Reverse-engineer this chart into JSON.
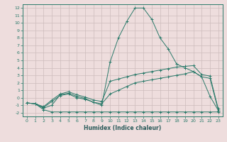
{
  "title": "",
  "xlabel": "Humidex (Indice chaleur)",
  "ylabel": "",
  "background_color": "#eedddd",
  "grid_color": "#ccbbbb",
  "line_color": "#2a7a6a",
  "xlim": [
    -0.5,
    23.5
  ],
  "ylim": [
    -2.5,
    12.5
  ],
  "xticks": [
    0,
    1,
    2,
    3,
    4,
    5,
    6,
    7,
    8,
    9,
    10,
    11,
    12,
    13,
    14,
    15,
    16,
    17,
    18,
    19,
    20,
    21,
    22,
    23
  ],
  "yticks": [
    -2,
    -1,
    0,
    1,
    2,
    3,
    4,
    5,
    6,
    7,
    8,
    9,
    10,
    11,
    12
  ],
  "series": [
    {
      "x": [
        0,
        1,
        2,
        3,
        4,
        5,
        6,
        7,
        8,
        9,
        10,
        11,
        12,
        13,
        14,
        15,
        16,
        17,
        18,
        19,
        20,
        21,
        22,
        23
      ],
      "y": [
        -0.7,
        -0.8,
        -1.6,
        -1.9,
        -1.9,
        -1.9,
        -1.9,
        -1.9,
        -1.9,
        -1.9,
        -1.9,
        -1.9,
        -1.9,
        -1.9,
        -1.9,
        -1.9,
        -1.9,
        -1.9,
        -1.9,
        -1.9,
        -1.9,
        -1.9,
        -1.9,
        -1.9
      ]
    },
    {
      "x": [
        0,
        1,
        2,
        3,
        4,
        5,
        6,
        7,
        8,
        9,
        10,
        11,
        12,
        13,
        14,
        15,
        16,
        17,
        18,
        19,
        20,
        21,
        22,
        23
      ],
      "y": [
        -0.7,
        -0.8,
        -1.3,
        -0.5,
        0.3,
        0.5,
        0.0,
        -0.2,
        -0.6,
        -0.8,
        0.5,
        1.0,
        1.5,
        2.0,
        2.2,
        2.4,
        2.6,
        2.8,
        3.0,
        3.2,
        3.5,
        2.8,
        2.6,
        -1.7
      ]
    },
    {
      "x": [
        0,
        1,
        2,
        3,
        4,
        5,
        6,
        7,
        8,
        9,
        10,
        11,
        12,
        13,
        14,
        15,
        16,
        17,
        18,
        19,
        20,
        21,
        22,
        23
      ],
      "y": [
        -0.7,
        -0.8,
        -1.4,
        -1.0,
        0.4,
        0.6,
        0.2,
        -0.1,
        -0.6,
        -1.0,
        4.8,
        8.0,
        10.2,
        12.0,
        12.0,
        10.5,
        8.0,
        6.5,
        4.5,
        4.0,
        3.5,
        2.8,
        0.2,
        -1.7
      ]
    },
    {
      "x": [
        0,
        1,
        2,
        3,
        4,
        5,
        6,
        7,
        8,
        9,
        10,
        11,
        12,
        13,
        14,
        15,
        16,
        17,
        18,
        19,
        20,
        21,
        22,
        23
      ],
      "y": [
        -0.7,
        -0.8,
        -1.2,
        -0.3,
        0.5,
        0.8,
        0.4,
        0.1,
        -0.3,
        -0.5,
        2.2,
        2.5,
        2.8,
        3.1,
        3.3,
        3.5,
        3.7,
        3.9,
        4.1,
        4.2,
        4.3,
        3.1,
        2.9,
        -1.5
      ]
    }
  ]
}
